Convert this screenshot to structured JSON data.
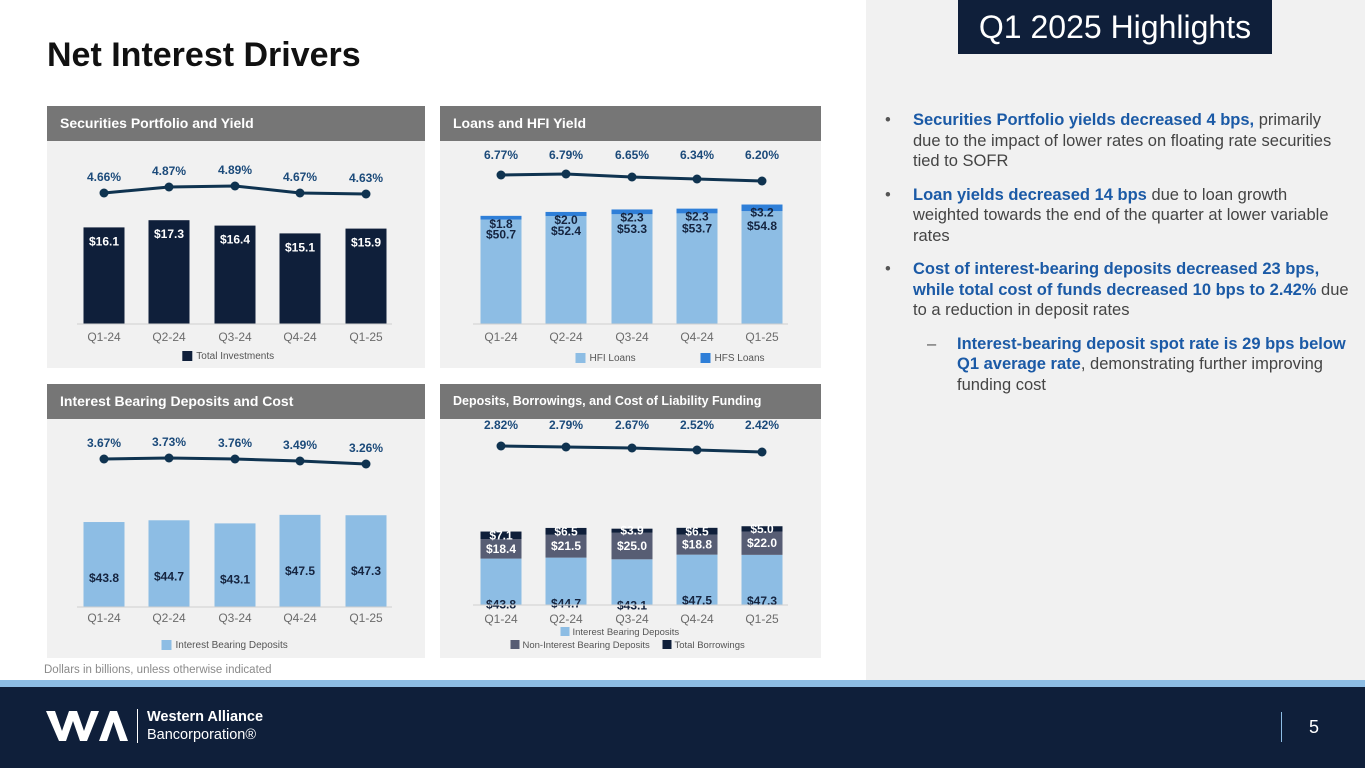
{
  "page": {
    "title": "Net Interest Drivers",
    "highlights_title": "Q1 2025 Highlights",
    "footnote": "Dollars in billions, unless otherwise indicated",
    "page_number": "5"
  },
  "logo": {
    "line1": "Western Alliance",
    "line2": "Bancorporation®"
  },
  "bullets": [
    {
      "bold": "Securities Portfolio yields decreased 4 bps,",
      "rest": " primarily due to the impact of lower rates on floating rate securities tied to SOFR"
    },
    {
      "bold": "Loan yields decreased 14 bps",
      "rest": " due to loan growth weighted towards the end of the quarter at lower variable rates"
    },
    {
      "bold": "Cost of interest-bearing deposits decreased 23 bps, while total cost of funds decreased 10 bps to 2.42%",
      "rest": " due to a reduction in deposit rates"
    },
    {
      "bold": "Interest-bearing deposit spot rate is 29 bps below Q1 average rate",
      "rest": ", demonstrating further improving funding cost"
    }
  ],
  "colors": {
    "navy": "#0f1f3a",
    "light_blue": "#8dbde4",
    "bright_blue": "#2f7fd8",
    "slate": "#575d74",
    "line": "#0f3350",
    "pct_label": "#1b4a7a",
    "header_gray": "#767676"
  },
  "chart_data": [
    {
      "type": "bar",
      "title": "Securities Portfolio and Yield",
      "categories": [
        "Q1-24",
        "Q2-24",
        "Q3-24",
        "Q4-24",
        "Q1-25"
      ],
      "series": [
        {
          "name": "Total Investments",
          "values": [
            16.1,
            17.3,
            16.4,
            15.1,
            15.9
          ],
          "labels": [
            "$16.1",
            "$17.3",
            "$16.4",
            "$15.1",
            "$15.9"
          ],
          "color": "#0f1f3a"
        }
      ],
      "line": {
        "values": [
          4.66,
          4.87,
          4.89,
          4.67,
          4.63
        ],
        "labels": [
          "4.66%",
          "4.87%",
          "4.89%",
          "4.67%",
          "4.63%"
        ]
      },
      "legend": [
        {
          "name": "Total Investments",
          "color": "#0f1f3a"
        }
      ],
      "legend_position": "bottom"
    },
    {
      "type": "bar",
      "title": "Loans and HFI Yield",
      "categories": [
        "Q1-24",
        "Q2-24",
        "Q3-24",
        "Q4-24",
        "Q1-25"
      ],
      "series": [
        {
          "name": "HFI Loans",
          "values": [
            50.7,
            52.4,
            53.3,
            53.7,
            54.8
          ],
          "labels": [
            "$50.7",
            "$52.4",
            "$53.3",
            "$53.7",
            "$54.8"
          ],
          "color": "#8dbde4"
        },
        {
          "name": "HFS Loans",
          "values": [
            1.8,
            2.0,
            2.3,
            2.3,
            3.2
          ],
          "labels": [
            "$1.8",
            "$2.0",
            "$2.3",
            "$2.3",
            "$3.2"
          ],
          "color": "#2f7fd8"
        }
      ],
      "line": {
        "values": [
          6.77,
          6.79,
          6.65,
          6.34,
          6.2
        ],
        "labels": [
          "6.77%",
          "6.79%",
          "6.65%",
          "6.34%",
          "6.20%"
        ]
      },
      "legend": [
        {
          "name": "HFI Loans",
          "color": "#8dbde4"
        },
        {
          "name": "HFS Loans",
          "color": "#2f7fd8"
        }
      ],
      "legend_position": "bottom"
    },
    {
      "type": "bar",
      "title": "Interest Bearing Deposits and Cost",
      "categories": [
        "Q1-24",
        "Q2-24",
        "Q3-24",
        "Q4-24",
        "Q1-25"
      ],
      "series": [
        {
          "name": "Interest Bearing Deposits",
          "values": [
            43.8,
            44.7,
            43.1,
            47.5,
            47.3
          ],
          "labels": [
            "$43.8",
            "$44.7",
            "$43.1",
            "$47.5",
            "$47.3"
          ],
          "color": "#8dbde4"
        }
      ],
      "line": {
        "values": [
          3.67,
          3.73,
          3.76,
          3.49,
          3.26
        ],
        "labels": [
          "3.67%",
          "3.73%",
          "3.76%",
          "3.49%",
          "3.26%"
        ]
      },
      "legend": [
        {
          "name": "Interest Bearing Deposits",
          "color": "#8dbde4"
        }
      ],
      "legend_position": "bottom"
    },
    {
      "type": "bar",
      "title": "Deposits, Borrowings, and Cost of Liability Funding",
      "categories": [
        "Q1-24",
        "Q2-24",
        "Q3-24",
        "Q4-24",
        "Q1-25"
      ],
      "series": [
        {
          "name": "Interest Bearing Deposits",
          "values": [
            43.8,
            44.7,
            43.1,
            47.5,
            47.3
          ],
          "labels": [
            "$43.8",
            "$44.7",
            "$43.1",
            "$47.5",
            "$47.3"
          ],
          "color": "#8dbde4"
        },
        {
          "name": "Non-Interest Bearing Deposits",
          "values": [
            18.4,
            21.5,
            25.0,
            18.8,
            22.0
          ],
          "labels": [
            "$18.4",
            "$21.5",
            "$25.0",
            "$18.8",
            "$22.0"
          ],
          "color": "#575d74"
        },
        {
          "name": "Total Borrowings",
          "values": [
            7.1,
            6.5,
            3.9,
            6.5,
            5.0
          ],
          "labels": [
            "$7.1",
            "$6.5",
            "$3.9",
            "$6.5",
            "$5.0"
          ],
          "color": "#0f1f3a"
        }
      ],
      "line": {
        "values": [
          2.82,
          2.79,
          2.67,
          2.52,
          2.42
        ],
        "labels": [
          "2.82%",
          "2.79%",
          "2.67%",
          "2.52%",
          "2.42%"
        ]
      },
      "legend": [
        {
          "name": "Interest Bearing Deposits",
          "color": "#8dbde4"
        },
        {
          "name": "Non-Interest Bearing Deposits",
          "color": "#575d74"
        },
        {
          "name": "Total Borrowings",
          "color": "#0f1f3a"
        }
      ],
      "legend_position": "bottom"
    }
  ]
}
